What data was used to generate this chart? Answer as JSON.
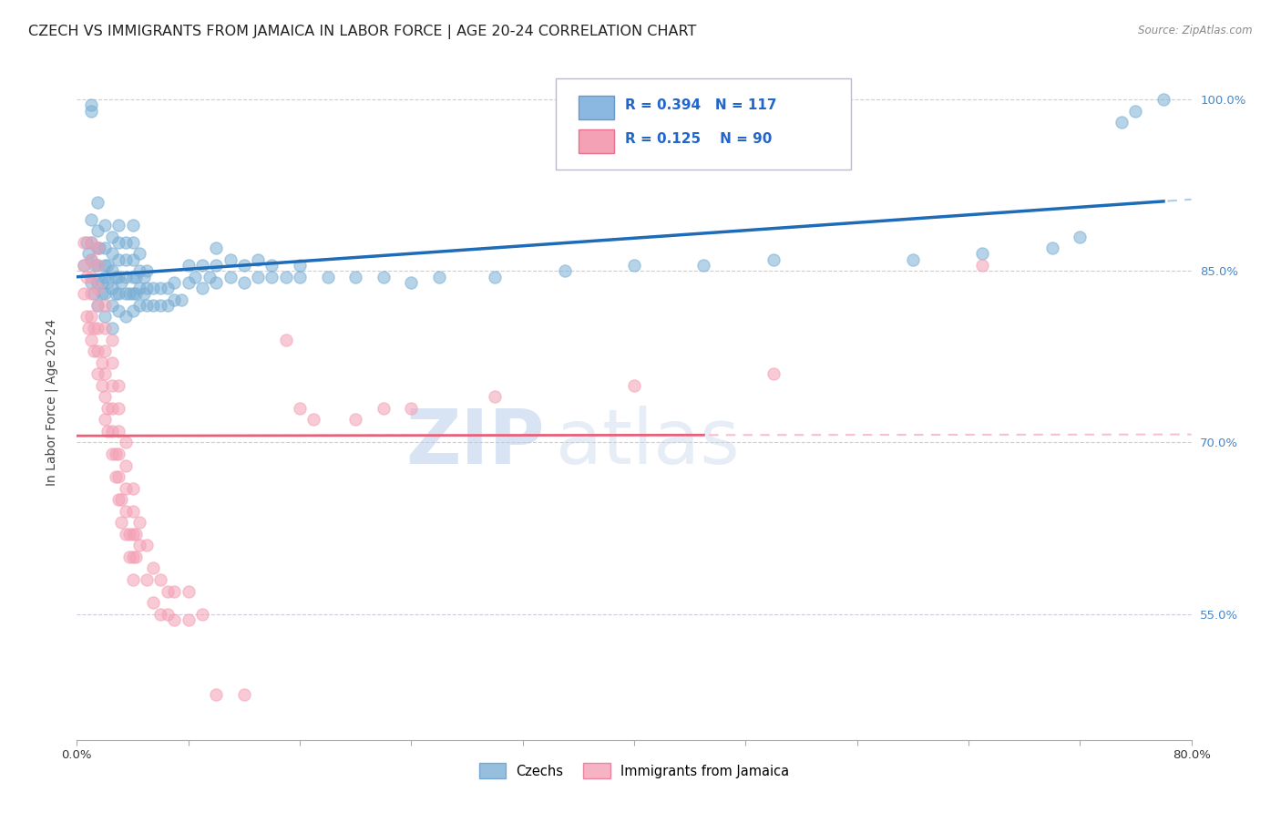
{
  "title": "CZECH VS IMMIGRANTS FROM JAMAICA IN LABOR FORCE | AGE 20-24 CORRELATION CHART",
  "source": "Source: ZipAtlas.com",
  "ylabel": "In Labor Force | Age 20-24",
  "watermark_zip": "ZIP",
  "watermark_atlas": "atlas",
  "xlim": [
    0.0,
    0.8
  ],
  "ylim": [
    0.44,
    1.03
  ],
  "xtick_positions": [
    0.0,
    0.08,
    0.16,
    0.24,
    0.32,
    0.4,
    0.48,
    0.56,
    0.64,
    0.72,
    0.8
  ],
  "xtick_labels": [
    "0.0%",
    "",
    "",
    "",
    "",
    "",
    "",
    "",
    "",
    "",
    "80.0%"
  ],
  "ytick_positions": [
    0.55,
    0.7,
    0.85,
    1.0
  ],
  "ytick_labels": [
    "55.0%",
    "70.0%",
    "85.0%",
    "100.0%"
  ],
  "czechs_R": 0.394,
  "czechs_N": 117,
  "jamaica_R": 0.125,
  "jamaica_N": 90,
  "czechs_color": "#7BAFD4",
  "jamaica_color": "#F4A0B5",
  "trend_czechs_color": "#1E6BB8",
  "trend_jamaica_color": "#E8607A",
  "trend_dashed_czechs_color": "#AACCEE",
  "trend_dashed_jamaica_color": "#F9C0CC",
  "czechs_scatter": [
    [
      0.005,
      0.855
    ],
    [
      0.007,
      0.875
    ],
    [
      0.008,
      0.865
    ],
    [
      0.01,
      0.84
    ],
    [
      0.01,
      0.86
    ],
    [
      0.01,
      0.875
    ],
    [
      0.01,
      0.895
    ],
    [
      0.01,
      0.99
    ],
    [
      0.01,
      0.995
    ],
    [
      0.012,
      0.83
    ],
    [
      0.013,
      0.855
    ],
    [
      0.015,
      0.82
    ],
    [
      0.015,
      0.84
    ],
    [
      0.015,
      0.855
    ],
    [
      0.015,
      0.87
    ],
    [
      0.015,
      0.885
    ],
    [
      0.015,
      0.91
    ],
    [
      0.016,
      0.87
    ],
    [
      0.018,
      0.83
    ],
    [
      0.018,
      0.84
    ],
    [
      0.02,
      0.81
    ],
    [
      0.02,
      0.83
    ],
    [
      0.02,
      0.845
    ],
    [
      0.02,
      0.855
    ],
    [
      0.02,
      0.87
    ],
    [
      0.02,
      0.89
    ],
    [
      0.022,
      0.84
    ],
    [
      0.022,
      0.855
    ],
    [
      0.025,
      0.8
    ],
    [
      0.025,
      0.82
    ],
    [
      0.025,
      0.835
    ],
    [
      0.025,
      0.85
    ],
    [
      0.025,
      0.865
    ],
    [
      0.025,
      0.88
    ],
    [
      0.028,
      0.83
    ],
    [
      0.028,
      0.845
    ],
    [
      0.03,
      0.815
    ],
    [
      0.03,
      0.83
    ],
    [
      0.03,
      0.845
    ],
    [
      0.03,
      0.86
    ],
    [
      0.03,
      0.875
    ],
    [
      0.03,
      0.89
    ],
    [
      0.032,
      0.84
    ],
    [
      0.035,
      0.81
    ],
    [
      0.035,
      0.83
    ],
    [
      0.035,
      0.845
    ],
    [
      0.035,
      0.86
    ],
    [
      0.035,
      0.875
    ],
    [
      0.038,
      0.83
    ],
    [
      0.04,
      0.815
    ],
    [
      0.04,
      0.83
    ],
    [
      0.04,
      0.845
    ],
    [
      0.04,
      0.86
    ],
    [
      0.04,
      0.875
    ],
    [
      0.04,
      0.89
    ],
    [
      0.042,
      0.83
    ],
    [
      0.042,
      0.845
    ],
    [
      0.045,
      0.82
    ],
    [
      0.045,
      0.835
    ],
    [
      0.045,
      0.85
    ],
    [
      0.045,
      0.865
    ],
    [
      0.048,
      0.83
    ],
    [
      0.048,
      0.845
    ],
    [
      0.05,
      0.82
    ],
    [
      0.05,
      0.835
    ],
    [
      0.05,
      0.85
    ],
    [
      0.055,
      0.82
    ],
    [
      0.055,
      0.835
    ],
    [
      0.06,
      0.82
    ],
    [
      0.06,
      0.835
    ],
    [
      0.065,
      0.82
    ],
    [
      0.065,
      0.835
    ],
    [
      0.07,
      0.825
    ],
    [
      0.07,
      0.84
    ],
    [
      0.075,
      0.825
    ],
    [
      0.08,
      0.84
    ],
    [
      0.08,
      0.855
    ],
    [
      0.085,
      0.845
    ],
    [
      0.09,
      0.835
    ],
    [
      0.09,
      0.855
    ],
    [
      0.095,
      0.845
    ],
    [
      0.1,
      0.84
    ],
    [
      0.1,
      0.855
    ],
    [
      0.1,
      0.87
    ],
    [
      0.11,
      0.845
    ],
    [
      0.11,
      0.86
    ],
    [
      0.12,
      0.84
    ],
    [
      0.12,
      0.855
    ],
    [
      0.13,
      0.845
    ],
    [
      0.13,
      0.86
    ],
    [
      0.14,
      0.845
    ],
    [
      0.14,
      0.855
    ],
    [
      0.15,
      0.845
    ],
    [
      0.16,
      0.845
    ],
    [
      0.16,
      0.855
    ],
    [
      0.18,
      0.845
    ],
    [
      0.2,
      0.845
    ],
    [
      0.22,
      0.845
    ],
    [
      0.24,
      0.84
    ],
    [
      0.26,
      0.845
    ],
    [
      0.3,
      0.845
    ],
    [
      0.35,
      0.85
    ],
    [
      0.4,
      0.855
    ],
    [
      0.45,
      0.855
    ],
    [
      0.5,
      0.86
    ],
    [
      0.6,
      0.86
    ],
    [
      0.65,
      0.865
    ],
    [
      0.7,
      0.87
    ],
    [
      0.72,
      0.88
    ],
    [
      0.75,
      0.98
    ],
    [
      0.76,
      0.99
    ],
    [
      0.78,
      1.0
    ]
  ],
  "jamaica_scatter": [
    [
      0.005,
      0.83
    ],
    [
      0.005,
      0.855
    ],
    [
      0.005,
      0.875
    ],
    [
      0.007,
      0.81
    ],
    [
      0.007,
      0.845
    ],
    [
      0.008,
      0.8
    ],
    [
      0.01,
      0.79
    ],
    [
      0.01,
      0.81
    ],
    [
      0.01,
      0.83
    ],
    [
      0.01,
      0.845
    ],
    [
      0.01,
      0.86
    ],
    [
      0.01,
      0.875
    ],
    [
      0.012,
      0.78
    ],
    [
      0.012,
      0.8
    ],
    [
      0.015,
      0.76
    ],
    [
      0.015,
      0.78
    ],
    [
      0.015,
      0.8
    ],
    [
      0.015,
      0.82
    ],
    [
      0.015,
      0.835
    ],
    [
      0.015,
      0.855
    ],
    [
      0.015,
      0.87
    ],
    [
      0.018,
      0.75
    ],
    [
      0.018,
      0.77
    ],
    [
      0.02,
      0.72
    ],
    [
      0.02,
      0.74
    ],
    [
      0.02,
      0.76
    ],
    [
      0.02,
      0.78
    ],
    [
      0.02,
      0.8
    ],
    [
      0.02,
      0.82
    ],
    [
      0.022,
      0.71
    ],
    [
      0.022,
      0.73
    ],
    [
      0.025,
      0.69
    ],
    [
      0.025,
      0.71
    ],
    [
      0.025,
      0.73
    ],
    [
      0.025,
      0.75
    ],
    [
      0.025,
      0.77
    ],
    [
      0.025,
      0.79
    ],
    [
      0.028,
      0.67
    ],
    [
      0.028,
      0.69
    ],
    [
      0.03,
      0.65
    ],
    [
      0.03,
      0.67
    ],
    [
      0.03,
      0.69
    ],
    [
      0.03,
      0.71
    ],
    [
      0.03,
      0.73
    ],
    [
      0.03,
      0.75
    ],
    [
      0.032,
      0.63
    ],
    [
      0.032,
      0.65
    ],
    [
      0.035,
      0.62
    ],
    [
      0.035,
      0.64
    ],
    [
      0.035,
      0.66
    ],
    [
      0.035,
      0.68
    ],
    [
      0.035,
      0.7
    ],
    [
      0.038,
      0.6
    ],
    [
      0.038,
      0.62
    ],
    [
      0.04,
      0.58
    ],
    [
      0.04,
      0.6
    ],
    [
      0.04,
      0.62
    ],
    [
      0.04,
      0.64
    ],
    [
      0.04,
      0.66
    ],
    [
      0.042,
      0.6
    ],
    [
      0.042,
      0.62
    ],
    [
      0.045,
      0.61
    ],
    [
      0.045,
      0.63
    ],
    [
      0.05,
      0.58
    ],
    [
      0.05,
      0.61
    ],
    [
      0.055,
      0.56
    ],
    [
      0.055,
      0.59
    ],
    [
      0.06,
      0.55
    ],
    [
      0.06,
      0.58
    ],
    [
      0.065,
      0.55
    ],
    [
      0.065,
      0.57
    ],
    [
      0.07,
      0.545
    ],
    [
      0.07,
      0.57
    ],
    [
      0.08,
      0.545
    ],
    [
      0.08,
      0.57
    ],
    [
      0.09,
      0.55
    ],
    [
      0.1,
      0.48
    ],
    [
      0.12,
      0.48
    ],
    [
      0.15,
      0.79
    ],
    [
      0.16,
      0.73
    ],
    [
      0.17,
      0.72
    ],
    [
      0.2,
      0.72
    ],
    [
      0.22,
      0.73
    ],
    [
      0.24,
      0.73
    ],
    [
      0.3,
      0.74
    ],
    [
      0.4,
      0.75
    ],
    [
      0.5,
      0.76
    ],
    [
      0.65,
      0.855
    ]
  ],
  "legend_czechs_label": "Czechs",
  "legend_jamaica_label": "Immigrants from Jamaica",
  "title_fontsize": 11.5,
  "axis_label_fontsize": 10,
  "tick_fontsize": 9.5,
  "legend_fontsize": 10.5
}
